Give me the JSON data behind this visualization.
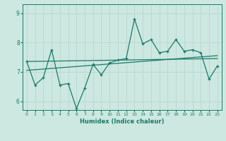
{
  "title": "",
  "xlabel": "Humidex (Indice chaleur)",
  "bg_color": "#cce8e0",
  "grid_color": "#b8d8d0",
  "line_color": "#1a7a6a",
  "xlim": [
    -0.5,
    23.5
  ],
  "ylim": [
    5.7,
    9.3
  ],
  "yticks": [
    6,
    7,
    8,
    9
  ],
  "xticks": [
    0,
    1,
    2,
    3,
    4,
    5,
    6,
    7,
    8,
    9,
    10,
    11,
    12,
    13,
    14,
    15,
    16,
    17,
    18,
    19,
    20,
    21,
    22,
    23
  ],
  "series1_x": [
    0,
    1,
    2,
    3,
    4,
    5,
    6,
    7,
    8,
    9,
    10,
    11,
    12,
    13,
    14,
    15,
    16,
    17,
    18,
    19,
    20,
    21,
    22,
    23
  ],
  "series1_y": [
    7.35,
    6.55,
    6.8,
    7.75,
    6.55,
    6.6,
    5.75,
    6.45,
    7.25,
    6.9,
    7.3,
    7.4,
    7.45,
    8.8,
    7.95,
    8.1,
    7.65,
    7.7,
    8.1,
    7.7,
    7.75,
    7.65,
    6.75,
    7.2
  ],
  "trend1_x": [
    0,
    23
  ],
  "trend1_y": [
    7.05,
    7.55
  ],
  "trend2_x": [
    0,
    23
  ],
  "trend2_y": [
    7.35,
    7.45
  ]
}
